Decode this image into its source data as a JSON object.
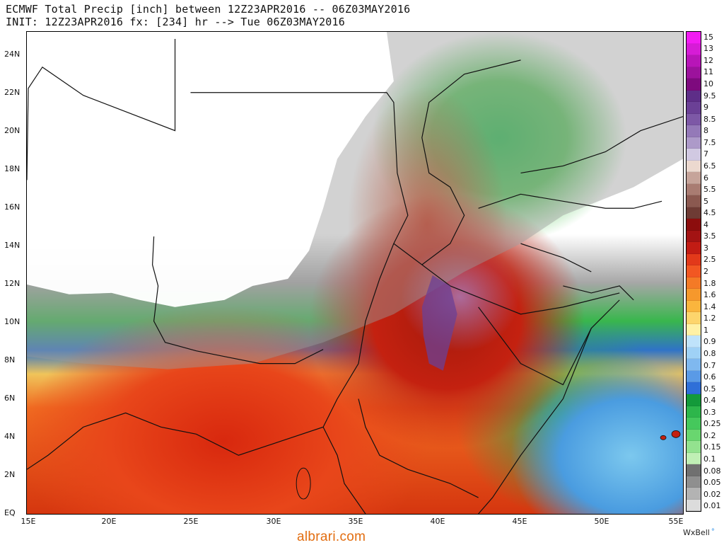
{
  "title": {
    "line1": "ECMWF Total Precip [inch] between 12Z23APR2016 -- 06Z03MAY2016",
    "line2": "INIT: 12Z23APR2016 fx: [234] hr --> Tue 06Z03MAY2016"
  },
  "axes": {
    "y_ticks": [
      "24N",
      "22N",
      "20N",
      "18N",
      "16N",
      "14N",
      "12N",
      "10N",
      "8N",
      "6N",
      "4N",
      "2N",
      "EQ"
    ],
    "x_ticks": [
      "15E",
      "20E",
      "25E",
      "30E",
      "35E",
      "40E",
      "45E",
      "50E",
      "55E"
    ]
  },
  "legend": {
    "items": [
      {
        "label": "15",
        "color": "#f21cf2"
      },
      {
        "label": "13",
        "color": "#d61cd6"
      },
      {
        "label": "12",
        "color": "#b815b8"
      },
      {
        "label": "11",
        "color": "#9c129c"
      },
      {
        "label": "10",
        "color": "#7e0a7e"
      },
      {
        "label": "9.5",
        "color": "#5e2e88"
      },
      {
        "label": "9",
        "color": "#6b4096"
      },
      {
        "label": "8.5",
        "color": "#7d58a6"
      },
      {
        "label": "8",
        "color": "#9479b8"
      },
      {
        "label": "7.5",
        "color": "#ad9ac9"
      },
      {
        "label": "7",
        "color": "#d1c9e2"
      },
      {
        "label": "6.5",
        "color": "#ecd9cf"
      },
      {
        "label": "6",
        "color": "#c6a49a"
      },
      {
        "label": "5.5",
        "color": "#a97c72"
      },
      {
        "label": "5",
        "color": "#8b5950"
      },
      {
        "label": "4.5",
        "color": "#6e3b34"
      },
      {
        "label": "4",
        "color": "#8c0d0d"
      },
      {
        "label": "3.5",
        "color": "#a31313"
      },
      {
        "label": "3",
        "color": "#c21c14"
      },
      {
        "label": "2.5",
        "color": "#e2391a"
      },
      {
        "label": "2",
        "color": "#f25722"
      },
      {
        "label": "1.8",
        "color": "#f47a26"
      },
      {
        "label": "1.6",
        "color": "#f6982c"
      },
      {
        "label": "1.4",
        "color": "#fab53d"
      },
      {
        "label": "1.2",
        "color": "#fdd56c"
      },
      {
        "label": "1",
        "color": "#fff1a5"
      },
      {
        "label": "0.9",
        "color": "#bfe3fb"
      },
      {
        "label": "0.8",
        "color": "#9fd1f6"
      },
      {
        "label": "0.7",
        "color": "#7fb8ef"
      },
      {
        "label": "0.6",
        "color": "#5a9ae6"
      },
      {
        "label": "0.5",
        "color": "#2f6fd8"
      },
      {
        "label": "0.4",
        "color": "#139a3a"
      },
      {
        "label": "0.3",
        "color": "#2db64b"
      },
      {
        "label": "0.25",
        "color": "#45c85c"
      },
      {
        "label": "0.2",
        "color": "#69d66f"
      },
      {
        "label": "0.15",
        "color": "#93e28f"
      },
      {
        "label": "0.1",
        "color": "#c0efb5"
      },
      {
        "label": "0.08",
        "color": "#707070"
      },
      {
        "label": "0.05",
        "color": "#8f8f8f"
      },
      {
        "label": "0.02",
        "color": "#b3b3b3"
      },
      {
        "label": "0.01",
        "color": "#dcdcdc"
      }
    ]
  },
  "branding": {
    "wxbell": "WxBell",
    "watermark": "albrari.com"
  }
}
